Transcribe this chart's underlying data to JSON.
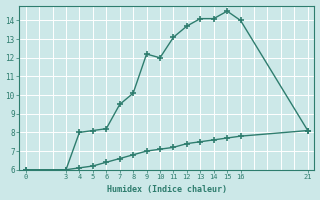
{
  "xlabel": "Humidex (Indice chaleur)",
  "bg_color": "#cce8e8",
  "grid_major_color": "#aacccc",
  "grid_minor_color": "#ddeeff",
  "line_color": "#2e7d6e",
  "upper_x": [
    0,
    3,
    4,
    5,
    6,
    7,
    8,
    9,
    10,
    11,
    12,
    13,
    14,
    15,
    16,
    21
  ],
  "upper_y": [
    6.0,
    6.0,
    8.0,
    8.1,
    8.2,
    9.5,
    10.1,
    12.2,
    12.0,
    13.1,
    13.7,
    14.1,
    14.1,
    14.5,
    14.0,
    8.1
  ],
  "lower_x": [
    0,
    3,
    4,
    5,
    6,
    7,
    8,
    9,
    10,
    11,
    12,
    13,
    14,
    15,
    16,
    21
  ],
  "lower_y": [
    6.0,
    6.0,
    6.1,
    6.2,
    6.4,
    6.6,
    6.8,
    7.0,
    7.1,
    7.2,
    7.4,
    7.5,
    7.6,
    7.7,
    7.8,
    8.1
  ],
  "xlim": [
    -0.5,
    21.5
  ],
  "ylim": [
    6,
    14.8
  ],
  "xtick_major": [
    0,
    3,
    4,
    5,
    6,
    7,
    8,
    9,
    10,
    11,
    12,
    13,
    14,
    15,
    16,
    21
  ],
  "ytick_major": [
    6,
    7,
    8,
    9,
    10,
    11,
    12,
    13,
    14
  ],
  "grid_x_all": [
    0,
    1,
    2,
    3,
    4,
    5,
    6,
    7,
    8,
    9,
    10,
    11,
    12,
    13,
    14,
    15,
    16,
    17,
    18,
    19,
    20,
    21
  ],
  "marker": "+",
  "markersize": 5,
  "linewidth": 1.0
}
